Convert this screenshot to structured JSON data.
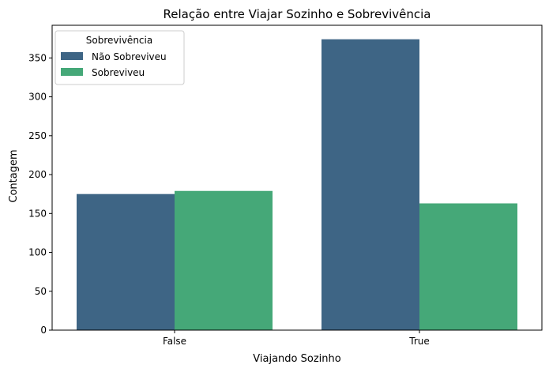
{
  "chart_data": {
    "type": "bar",
    "title": "Relação entre Viajar Sozinho e Sobrevivência",
    "xlabel": "Viajando Sozinho",
    "ylabel": "Contagem",
    "categories": [
      "False",
      "True"
    ],
    "ylim": [
      0,
      392
    ],
    "yticks": [
      0,
      50,
      100,
      150,
      200,
      250,
      300,
      350
    ],
    "series": [
      {
        "name": "Não Sobreviveu",
        "color": "#3e6585",
        "values": [
          175,
          374
        ]
      },
      {
        "name": "Sobreviveu",
        "color": "#45a878",
        "values": [
          179,
          163
        ]
      }
    ],
    "legend": {
      "title": "Sobrevivência",
      "position": "top-left"
    },
    "grid": false
  }
}
